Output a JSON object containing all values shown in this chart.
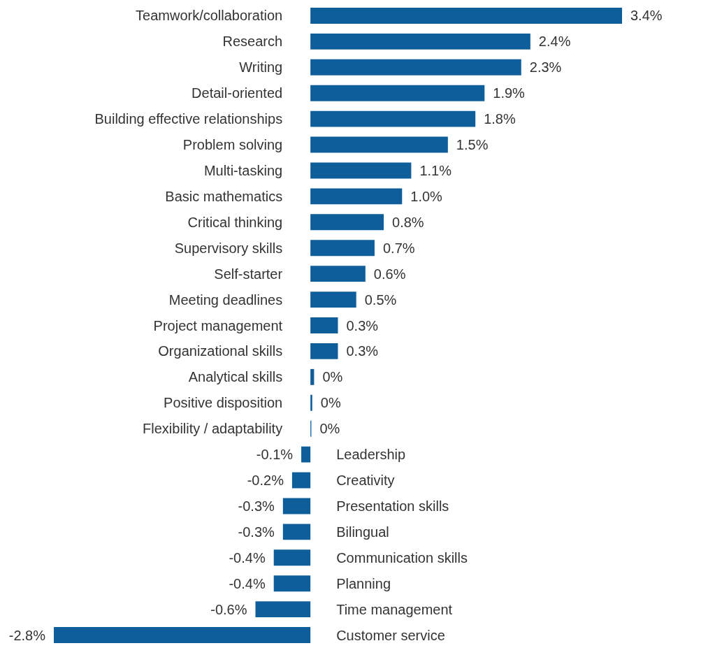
{
  "chart_data": {
    "type": "bar",
    "orientation": "horizontal",
    "color": "#0f5e9c",
    "categories": [
      "Teamwork/collaboration",
      "Research",
      "Writing",
      "Detail-oriented",
      "Building effective relationships",
      "Problem solving",
      "Multi-tasking",
      "Basic mathematics",
      "Critical thinking",
      "Supervisory skills",
      "Self-starter",
      "Meeting deadlines",
      "Project management",
      "Organizational skills",
      "Analytical skills",
      "Positive disposition",
      "Flexibility / adaptability",
      "Leadership",
      "Creativity",
      "Presentation skills",
      "Bilingual",
      "Communication skills",
      "Planning",
      "Time management",
      "Customer service"
    ],
    "values": [
      3.4,
      2.4,
      2.3,
      1.9,
      1.8,
      1.5,
      1.1,
      1.0,
      0.8,
      0.7,
      0.6,
      0.5,
      0.3,
      0.3,
      0.04,
      0.02,
      0.01,
      -0.1,
      -0.2,
      -0.3,
      -0.3,
      -0.4,
      -0.4,
      -0.6,
      -2.8
    ],
    "value_labels": [
      "3.4%",
      "2.4%",
      "2.3%",
      "1.9%",
      "1.8%",
      "1.5%",
      "1.1%",
      "1.0%",
      "0.8%",
      "0.7%",
      "0.6%",
      "0.5%",
      "0.3%",
      "0.3%",
      "0%",
      "0%",
      "0%",
      "-0.1%",
      "-0.2%",
      "-0.3%",
      "-0.3%",
      "-0.4%",
      "-0.4%",
      "-0.6%",
      "-2.8%"
    ]
  }
}
